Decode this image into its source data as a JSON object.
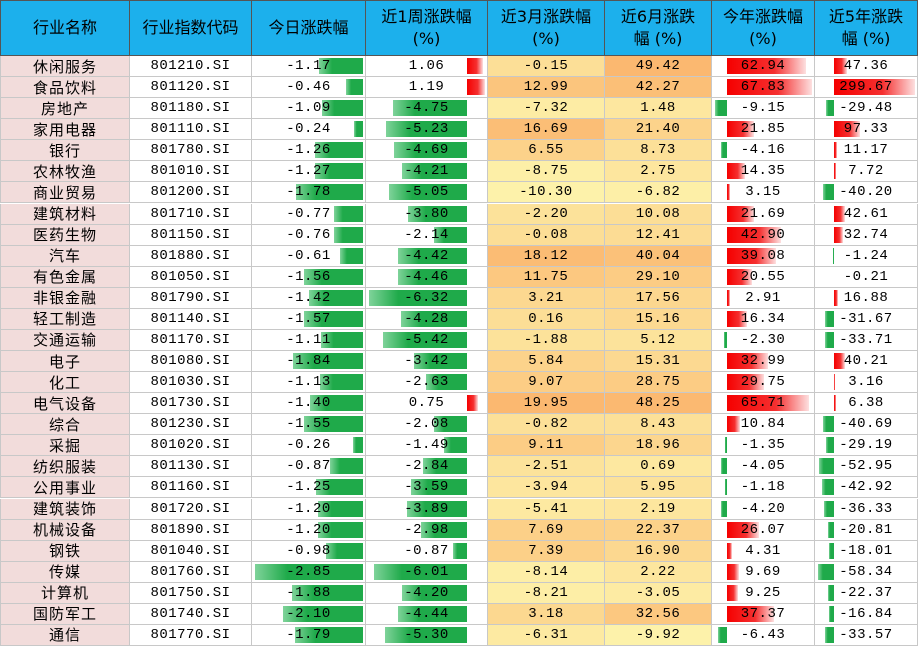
{
  "table": {
    "header": [
      "行业名称",
      "行业指数代码",
      "今日涨跌幅",
      "近1周涨跌幅\n(%)",
      "近3月涨跌幅\n(%)",
      "近6月涨跌\n幅 (%)",
      "今年涨跌幅\n(%)",
      "近5年涨跌\n幅 (%)"
    ],
    "rows": [
      [
        "休闲服务",
        "801210.SI",
        "-1.17",
        "1.06",
        "-0.15",
        "49.42",
        "62.94",
        "47.36"
      ],
      [
        "食品饮料",
        "801120.SI",
        "-0.46",
        "1.19",
        "12.99",
        "42.27",
        "67.83",
        "299.67"
      ],
      [
        "房地产",
        "801180.SI",
        "-1.09",
        "-4.75",
        "-7.32",
        "1.48",
        "-9.15",
        "-29.48"
      ],
      [
        "家用电器",
        "801110.SI",
        "-0.24",
        "-5.23",
        "16.69",
        "21.40",
        "21.85",
        "97.33"
      ],
      [
        "银行",
        "801780.SI",
        "-1.26",
        "-4.69",
        "6.55",
        "8.73",
        "-4.16",
        "11.17"
      ],
      [
        "农林牧渔",
        "801010.SI",
        "-1.27",
        "-4.21",
        "-8.75",
        "2.75",
        "14.35",
        "7.72"
      ],
      [
        "商业贸易",
        "801200.SI",
        "-1.78",
        "-5.05",
        "-10.30",
        "-6.82",
        "3.15",
        "-40.20"
      ],
      [
        "建筑材料",
        "801710.SI",
        "-0.77",
        "-3.80",
        "-2.20",
        "10.08",
        "21.69",
        "42.61"
      ],
      [
        "医药生物",
        "801150.SI",
        "-0.76",
        "-2.14",
        "-0.08",
        "12.41",
        "42.90",
        "32.74"
      ],
      [
        "汽车",
        "801880.SI",
        "-0.61",
        "-4.42",
        "18.12",
        "40.04",
        "39.08",
        "-1.24"
      ],
      [
        "有色金属",
        "801050.SI",
        "-1.56",
        "-4.46",
        "11.75",
        "29.10",
        "20.55",
        "-0.21"
      ],
      [
        "非银金融",
        "801790.SI",
        "-1.42",
        "-6.32",
        "3.21",
        "17.56",
        "2.91",
        "16.88"
      ],
      [
        "轻工制造",
        "801140.SI",
        "-1.57",
        "-4.28",
        "0.16",
        "15.16",
        "16.34",
        "-31.67"
      ],
      [
        "交通运输",
        "801170.SI",
        "-1.11",
        "-5.42",
        "-1.88",
        "5.12",
        "-2.30",
        "-33.71"
      ],
      [
        "电子",
        "801080.SI",
        "-1.84",
        "-3.42",
        "5.84",
        "15.31",
        "32.99",
        "40.21"
      ],
      [
        "化工",
        "801030.SI",
        "-1.13",
        "-2.63",
        "9.07",
        "28.75",
        "29.75",
        "3.16"
      ],
      [
        "电气设备",
        "801730.SI",
        "-1.40",
        "0.75",
        "19.95",
        "48.25",
        "65.71",
        "6.38"
      ],
      [
        "综合",
        "801230.SI",
        "-1.55",
        "-2.08",
        "-0.82",
        "8.43",
        "10.84",
        "-40.69"
      ],
      [
        "采掘",
        "801020.SI",
        "-0.26",
        "-1.49",
        "9.11",
        "18.96",
        "-1.35",
        "-29.19"
      ],
      [
        "纺织服装",
        "801130.SI",
        "-0.87",
        "-2.84",
        "-2.51",
        "0.69",
        "-4.05",
        "-52.95"
      ],
      [
        "公用事业",
        "801160.SI",
        "-1.25",
        "-3.59",
        "-3.94",
        "5.95",
        "-1.18",
        "-42.92"
      ],
      [
        "建筑装饰",
        "801720.SI",
        "-1.20",
        "-3.89",
        "-5.41",
        "2.19",
        "-4.20",
        "-36.33"
      ],
      [
        "机械设备",
        "801890.SI",
        "-1.20",
        "-2.98",
        "7.69",
        "22.37",
        "26.07",
        "-20.81"
      ],
      [
        "钢铁",
        "801040.SI",
        "-0.98",
        "-0.87",
        "7.39",
        "16.90",
        "4.31",
        "-18.01"
      ],
      [
        "传媒",
        "801760.SI",
        "-2.85",
        "-6.01",
        "-8.14",
        "2.22",
        "9.69",
        "-58.34"
      ],
      [
        "计算机",
        "801750.SI",
        "-1.88",
        "-4.20",
        "-8.21",
        "-3.05",
        "9.25",
        "-22.37"
      ],
      [
        "国防军工",
        "801740.SI",
        "-2.10",
        "-4.44",
        "3.18",
        "32.56",
        "37.37",
        "-16.84"
      ],
      [
        "通信",
        "801770.SI",
        "-1.79",
        "-5.30",
        "-6.31",
        "-9.92",
        "-6.43",
        "-33.57"
      ]
    ]
  }
}
